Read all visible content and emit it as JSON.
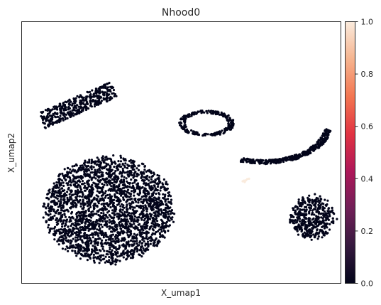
{
  "chart_data": {
    "type": "scatter",
    "title": "Nhood0",
    "xlabel": "X_umap1",
    "ylabel": "X_umap2",
    "grid": false,
    "x_ticks": false,
    "y_ticks": false,
    "point_color_low": "#03051a",
    "point_color_high": "#faebdd",
    "colorbar": {
      "min": 0.0,
      "max": 1.0,
      "ticks": [
        "0.0",
        "0.2",
        "0.4",
        "0.6",
        "0.8",
        "1.0"
      ],
      "colormap": "rocket",
      "stops": [
        "#03051a",
        "#35193e",
        "#701f57",
        "#ae1759",
        "#e13342",
        "#f37651",
        "#f6b48f",
        "#faebdd"
      ]
    },
    "clusters": [
      {
        "shape": "blob",
        "cx": -1.3,
        "cy": -0.6,
        "rx": 1.25,
        "ry": 1.0,
        "n": 2600,
        "value": 0.0
      },
      {
        "shape": "arc",
        "cx": 1.8,
        "cy": 2.2,
        "r": 3.0,
        "a0": 105,
        "a1": 60,
        "w": 0.22,
        "n": 550,
        "value": 0.0
      },
      {
        "shape": "band",
        "x0": -2.6,
        "y0": 1.1,
        "x1": -1.2,
        "y1": 1.7,
        "w": 0.32,
        "n": 420,
        "value": 0.0
      },
      {
        "shape": "ring",
        "cx": 0.6,
        "cy": 1.05,
        "rx": 0.48,
        "ry": 0.22,
        "n": 260,
        "value": 0.0
      },
      {
        "shape": "arc",
        "cx": 1.7,
        "cy": 1.0,
        "r": 1.25,
        "a0": 250,
        "a1": 355,
        "w": 0.14,
        "n": 380,
        "value": 0.0
      },
      {
        "shape": "blob",
        "cx": 2.65,
        "cy": -0.75,
        "rx": 0.42,
        "ry": 0.4,
        "n": 420,
        "value": 0.0
      },
      {
        "shape": "blob",
        "cx": 1.35,
        "cy": -0.05,
        "rx": 0.06,
        "ry": 0.04,
        "n": 8,
        "value": 1.0
      }
    ]
  }
}
